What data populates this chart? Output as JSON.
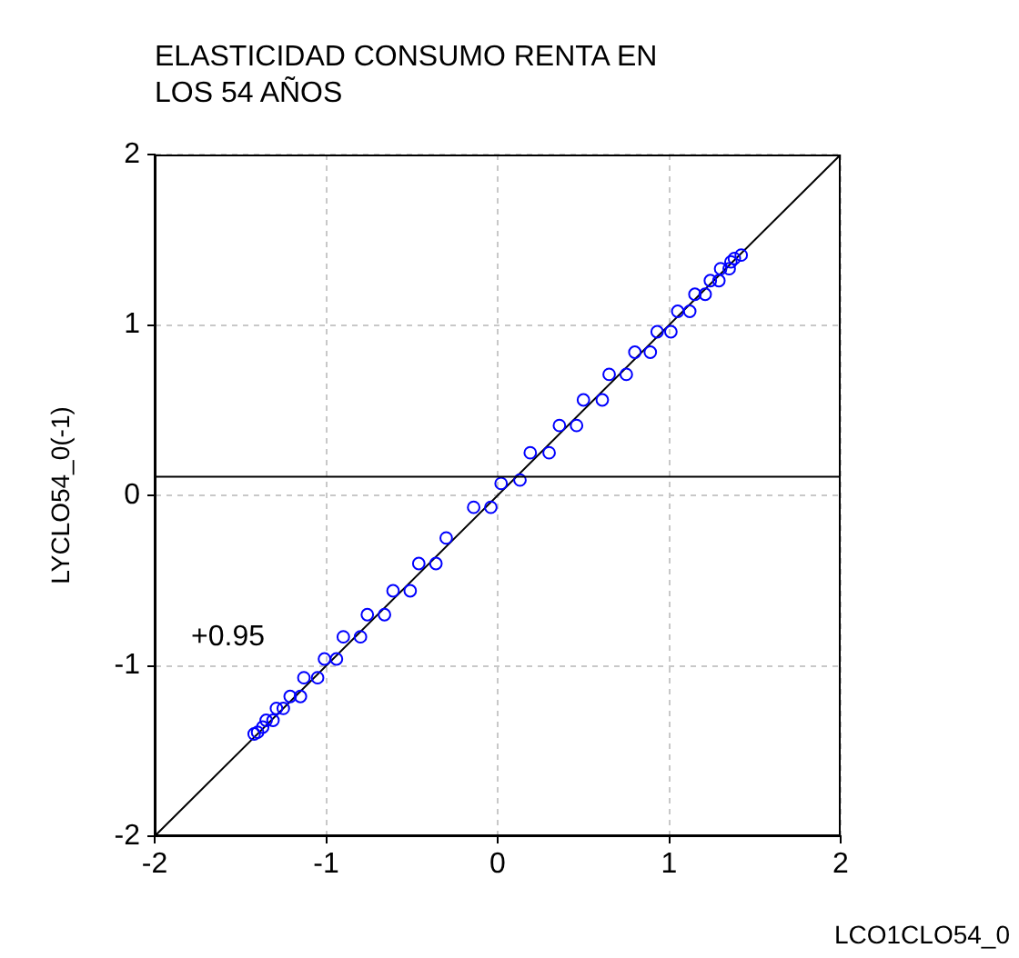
{
  "chart_data": {
    "type": "scatter",
    "title": "ELASTICIDAD CONSUMO RENTA EN LOS 54 AÑOS",
    "xlabel": "LCO1CLO54_0",
    "ylabel": "LYCLO54_0(-1)",
    "xlim": [
      -2,
      2
    ],
    "ylim": [
      -2,
      2
    ],
    "xticks": [
      -2,
      -1,
      0,
      1,
      2
    ],
    "yticks": [
      -2,
      -1,
      0,
      1,
      2
    ],
    "grid": true,
    "legend": false,
    "annotations": [
      "+0.95"
    ],
    "ref_lines": [
      {
        "axis": "y",
        "value": 0.11,
        "color": "#000000"
      }
    ],
    "series": [
      {
        "color": "#0000ff",
        "marker": "circle",
        "x": [
          -1.42,
          -1.4,
          -1.37,
          -1.35,
          -1.31,
          -1.29,
          -1.25,
          -1.21,
          -1.15,
          -1.13,
          -1.05,
          -1.01,
          -0.94,
          -0.9,
          -0.8,
          -0.76,
          -0.66,
          -0.61,
          -0.51,
          -0.46,
          -0.36,
          -0.3,
          -0.14,
          -0.04,
          0.02,
          0.13,
          0.19,
          0.3,
          0.36,
          0.46,
          0.5,
          0.61,
          0.65,
          0.75,
          0.8,
          0.89,
          0.93,
          1.01,
          1.05,
          1.12,
          1.15,
          1.21,
          1.24,
          1.29,
          1.3,
          1.35,
          1.36,
          1.38,
          1.42
        ],
        "values": [
          -1.4,
          -1.39,
          -1.36,
          -1.32,
          -1.32,
          -1.25,
          -1.25,
          -1.18,
          -1.18,
          -1.07,
          -1.07,
          -0.96,
          -0.96,
          -0.83,
          -0.83,
          -0.7,
          -0.7,
          -0.56,
          -0.56,
          -0.4,
          -0.4,
          -0.25,
          -0.07,
          -0.07,
          0.07,
          0.09,
          0.25,
          0.25,
          0.41,
          0.41,
          0.56,
          0.56,
          0.71,
          0.71,
          0.84,
          0.84,
          0.96,
          0.96,
          1.08,
          1.08,
          1.18,
          1.18,
          1.26,
          1.26,
          1.33,
          1.33,
          1.37,
          1.39,
          1.41
        ]
      },
      {
        "type": "line",
        "color": "#000000",
        "marker": "none",
        "x": [
          -2,
          2
        ],
        "values": [
          -2,
          2
        ]
      }
    ]
  }
}
